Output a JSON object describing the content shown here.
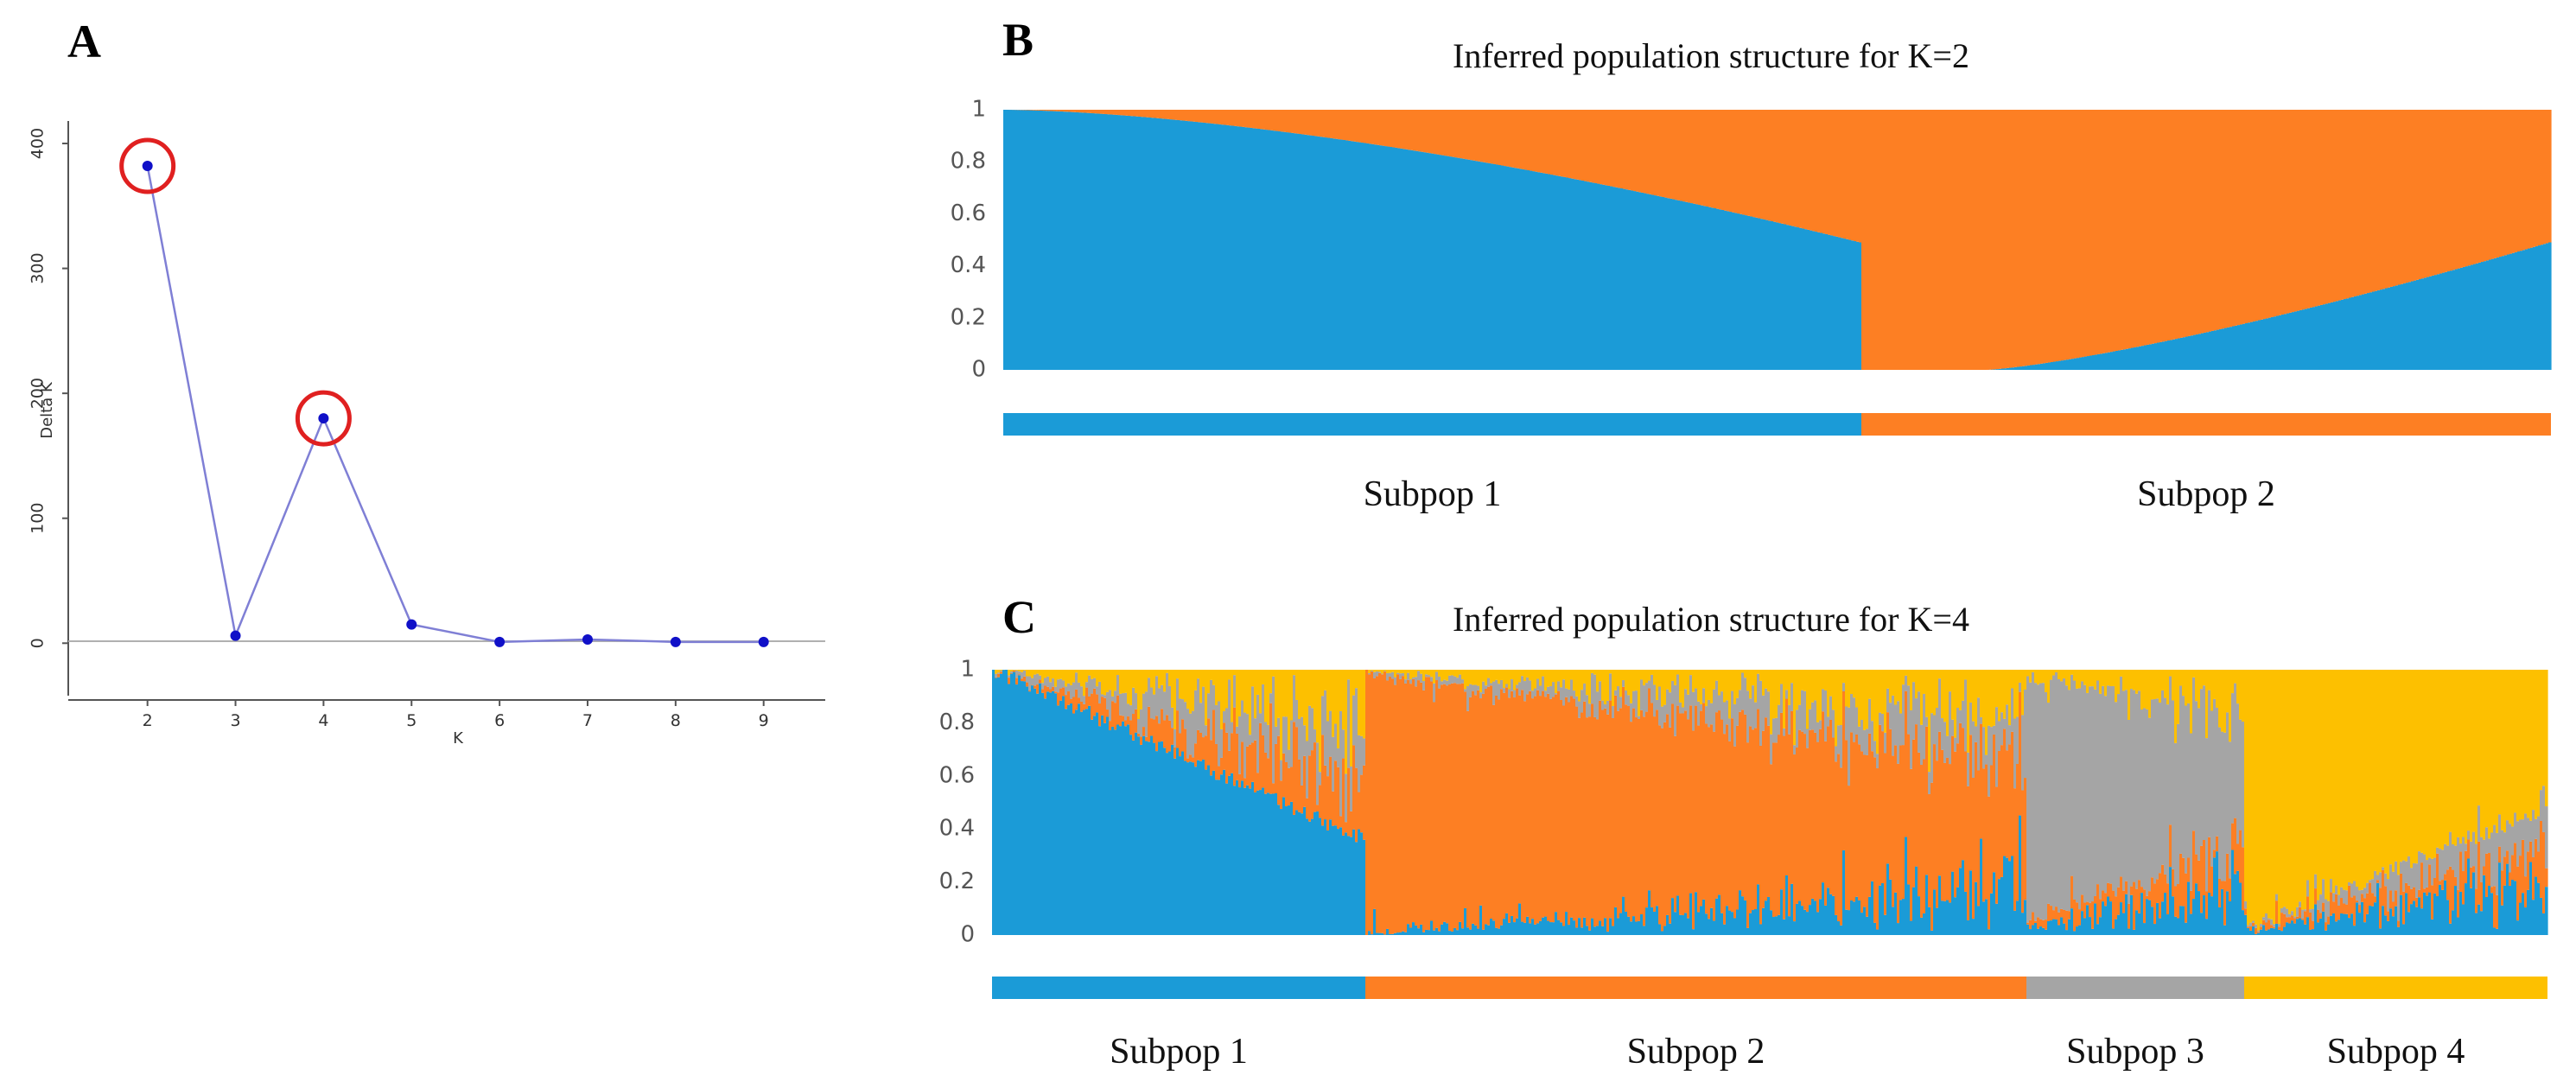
{
  "colors": {
    "blue": "#1b9bd7",
    "orange": "#fd7f23",
    "gray": "#a5a5a5",
    "yellow": "#fdc000",
    "line": "#7f7fd5",
    "point": "#1010c8",
    "highlight": "#e02020"
  },
  "chart_data": [
    {
      "panel": "A",
      "type": "line",
      "title": "",
      "xlabel": "K",
      "ylabel": "Delta K",
      "x": [
        2,
        3,
        4,
        5,
        6,
        7,
        8,
        9
      ],
      "series": [
        {
          "name": "Delta K",
          "values": [
            382,
            6,
            180,
            15,
            1,
            3,
            1,
            1
          ]
        }
      ],
      "xlim": [
        1.1,
        9.7
      ],
      "ylim": [
        -42,
        418
      ],
      "xticks": [
        "2",
        "3",
        "4",
        "5",
        "6",
        "7",
        "8",
        "9"
      ],
      "yticks": [
        "0",
        "100",
        "200",
        "300",
        "400"
      ],
      "highlighted_k": [
        2,
        4
      ]
    },
    {
      "panel": "B",
      "type": "bar",
      "stacked": true,
      "title": "Inferred population structure for K=2",
      "ylim": [
        0,
        1
      ],
      "yticks": [
        "0",
        "0.2",
        "0.4",
        "0.6",
        "0.8",
        "1"
      ],
      "series_order": [
        "blue",
        "orange"
      ],
      "subpops": [
        {
          "label": "Subpop 1",
          "color": "blue",
          "fraction": 0.555,
          "blue_start": 1.0,
          "blue_end": 0.49
        },
        {
          "label": "Subpop 2",
          "color": "orange",
          "fraction": 0.445,
          "blue_start": 0.0,
          "blue_end": 0.49
        }
      ]
    },
    {
      "panel": "C",
      "type": "bar",
      "stacked": true,
      "title": "Inferred population structure for K=4",
      "ylim": [
        0,
        1
      ],
      "yticks": [
        "0",
        "0.2",
        "0.4",
        "0.6",
        "0.8",
        "1"
      ],
      "series_order": [
        "blue",
        "orange",
        "gray",
        "yellow"
      ],
      "subpops": [
        {
          "label": "Subpop 1",
          "color": "blue",
          "fraction": 0.24,
          "dominant_start": 1.0,
          "dominant_end": 0.36
        },
        {
          "label": "Subpop 2",
          "color": "orange",
          "fraction": 0.425,
          "dominant_start": 0.98,
          "dominant_end": 0.48
        },
        {
          "label": "Subpop 3",
          "color": "gray",
          "fraction": 0.14,
          "dominant_start": 0.92,
          "dominant_end": 0.5
        },
        {
          "label": "Subpop 4",
          "color": "yellow",
          "fraction": 0.195,
          "dominant_start": 0.98,
          "dominant_end": 0.52
        }
      ]
    }
  ],
  "labels": {
    "panel_a": "A",
    "panel_b": "B",
    "panel_c": "C"
  }
}
